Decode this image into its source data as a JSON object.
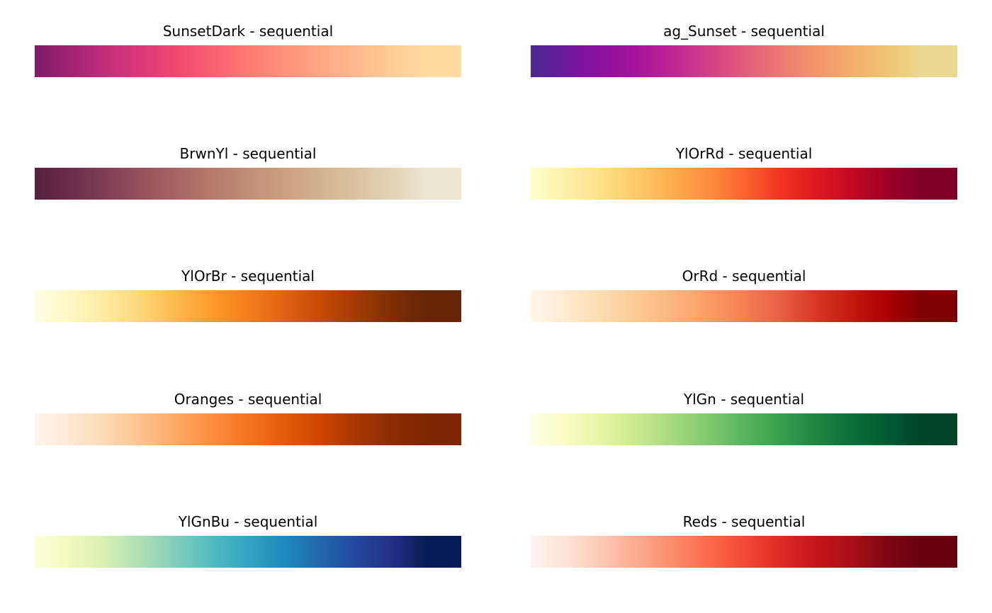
{
  "chart_data": [
    {
      "type": "heatmap",
      "title": "SunsetDark - sequential",
      "colors": [
        "#7d1d67",
        "#a12275",
        "#c22e7b",
        "#dc3977",
        "#f0496f",
        "#fa6070",
        "#ff7a72",
        "#ff9179",
        "#ffa582",
        "#ffb98c",
        "#ffcb97",
        "#ffdba1"
      ]
    },
    {
      "type": "heatmap",
      "title": "ag_Sunset - sequential",
      "colors": [
        "#4b2991",
        "#6e1a9b",
        "#8d0f9c",
        "#a8149a",
        "#c02592",
        "#d43f87",
        "#e35b7b",
        "#ec7872",
        "#f2946b",
        "#f3ad6d",
        "#f1c373",
        "#ead890"
      ]
    },
    {
      "type": "heatmap",
      "title": "BrwnYl - sequential",
      "colors": [
        "#541f3f",
        "#6b2d4a",
        "#803e55",
        "#95525c",
        "#a76664",
        "#b67a6b",
        "#c28d75",
        "#cb9f80",
        "#d3b18f",
        "#dbc29f",
        "#e3d2b3",
        "#ede5cf"
      ]
    },
    {
      "type": "heatmap",
      "title": "YlOrRd - sequential",
      "colors": [
        "#ffffcc",
        "#fff0a9",
        "#fee087",
        "#fec965",
        "#feab4b",
        "#fd8d3c",
        "#fc6330",
        "#f03523",
        "#de1a1f",
        "#c30a23",
        "#a10026",
        "#800026"
      ]
    },
    {
      "type": "heatmap",
      "title": "YlOrBr - sequential",
      "colors": [
        "#ffffe5",
        "#fff8c4",
        "#feeaa0",
        "#fed577",
        "#feb84c",
        "#fe9a2a",
        "#f47e1b",
        "#e26213",
        "#c64b06",
        "#a33b04",
        "#7f2f05",
        "#662506"
      ]
    },
    {
      "type": "heatmap",
      "title": "OrRd - sequential",
      "colors": [
        "#fff7ec",
        "#feead0",
        "#fddcb0",
        "#fdc994",
        "#fdb57f",
        "#fc9c68",
        "#f67f54",
        "#ea6046",
        "#d93727",
        "#c41a11",
        "#ad0000",
        "#7f0000"
      ]
    },
    {
      "type": "heatmap",
      "title": "Oranges - sequential",
      "colors": [
        "#fff5eb",
        "#fee8d3",
        "#fdd8b3",
        "#fdc18c",
        "#fda863",
        "#fd8e3e",
        "#f47421",
        "#e65a0b",
        "#d04401",
        "#a93703",
        "#8c2d04",
        "#7f2704"
      ]
    },
    {
      "type": "heatmap",
      "title": "YlGn - sequential",
      "colors": [
        "#ffffe5",
        "#f9fdc3",
        "#e6f5a2",
        "#c8e98d",
        "#a6d97f",
        "#80c86f",
        "#5ab55d",
        "#3aa04c",
        "#238442",
        "#0f6e3a",
        "#005b31",
        "#004529"
      ]
    },
    {
      "type": "heatmap",
      "title": "YlGnBu - sequential",
      "colors": [
        "#ffffd9",
        "#f1f9bd",
        "#d6efb3",
        "#addeb6",
        "#7fcdbb",
        "#52bbc1",
        "#31a5c2",
        "#1d8bbb",
        "#2168ad",
        "#23499e",
        "#233086",
        "#081d58"
      ]
    },
    {
      "type": "heatmap",
      "title": "Reds - sequential",
      "colors": [
        "#fff5f0",
        "#fee3d6",
        "#fdc9b4",
        "#fcaa8e",
        "#fc8a6b",
        "#fb6b4b",
        "#f24a35",
        "#e02c26",
        "#c4161c",
        "#a91016",
        "#7f0712",
        "#67000d"
      ]
    }
  ]
}
